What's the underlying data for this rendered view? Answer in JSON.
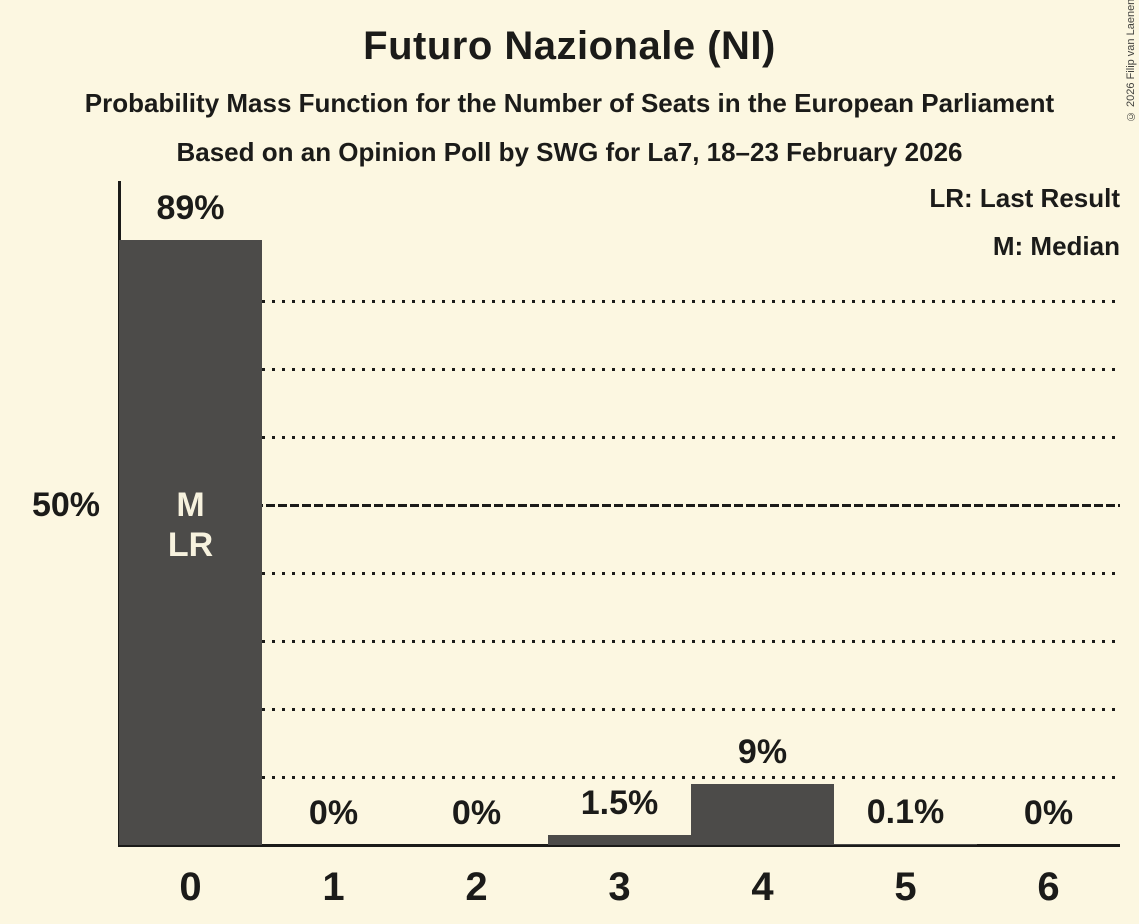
{
  "chart_data": {
    "type": "bar",
    "title": "Futuro Nazionale (NI)",
    "subtitle": "Probability Mass Function for the Number of Seats in the European Parliament",
    "poll_details": "Based on an Opinion Poll by SWG for La7, 18–23 February 2026",
    "copyright": "© 2026 Filip van Laenen",
    "legend": [
      "LR: Last Result",
      "M: Median"
    ],
    "legend_position": "top-right",
    "categories": [
      "0",
      "1",
      "2",
      "3",
      "4",
      "5",
      "6"
    ],
    "values": [
      89,
      0,
      0,
      1.5,
      9,
      0.1,
      0
    ],
    "value_labels": [
      "89%",
      "0%",
      "0%",
      "1.5%",
      "9%",
      "0.1%",
      "0%"
    ],
    "xlabel": "",
    "ylabel": "",
    "ylim": [
      0,
      97.5
    ],
    "y_axis_tick": {
      "value": 50,
      "label": "50%"
    },
    "gridlines": {
      "dotted": [
        10,
        20,
        30,
        40,
        60,
        70,
        80
      ],
      "dashed": [
        50
      ],
      "grid_on": true
    },
    "annotations": [
      {
        "category": "0",
        "lines": [
          "M",
          "LR"
        ]
      }
    ],
    "colors": {
      "background": "#FCF7E1",
      "bar": "#4C4B49",
      "text": "#1B1B19",
      "bar_label_text": "#F7F2DE"
    }
  }
}
